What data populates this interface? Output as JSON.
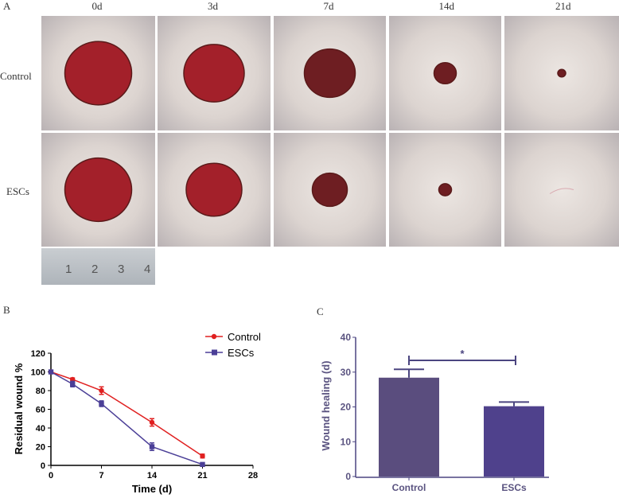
{
  "panel_a": {
    "label": "A",
    "days": [
      "0d",
      "3d",
      "7d",
      "14d",
      "21d"
    ],
    "groups": [
      "Control",
      "ESCs"
    ],
    "ruler_marks": [
      "1",
      "2",
      "3",
      "4"
    ]
  },
  "chart_data": [
    {
      "panel": "B",
      "type": "line",
      "xlabel": "Time (d)",
      "ylabel": "Residual wound %",
      "xlim": [
        0,
        28
      ],
      "ylim": [
        0,
        120
      ],
      "xticks": [
        "0",
        "7",
        "14",
        "21",
        "28"
      ],
      "yticks": [
        "0",
        "20",
        "40",
        "60",
        "80",
        "100",
        "120"
      ],
      "legend": "top-right",
      "x": [
        0,
        3,
        7,
        14,
        21
      ],
      "series": [
        {
          "name": "Control",
          "color": "#e02020",
          "marker": "circle",
          "values": [
            100,
            92,
            80,
            46,
            10
          ],
          "errors": [
            0,
            1.5,
            4,
            4,
            2
          ]
        },
        {
          "name": "ESCs",
          "color": "#4b3f97",
          "marker": "square",
          "values": [
            100,
            87,
            66,
            20,
            1
          ],
          "errors": [
            0,
            3,
            3,
            4,
            1
          ]
        }
      ]
    },
    {
      "panel": "C",
      "type": "bar",
      "ylabel": "Wound healing (d)",
      "ylim": [
        0,
        40
      ],
      "yticks": [
        "0",
        "10",
        "20",
        "30",
        "40"
      ],
      "categories": [
        "Control",
        "ESCs"
      ],
      "values": [
        28.4,
        20.2
      ],
      "errors": [
        2.4,
        1.2
      ],
      "colors": [
        "#5a4d7e",
        "#4f418c"
      ],
      "annotation": "*"
    }
  ]
}
